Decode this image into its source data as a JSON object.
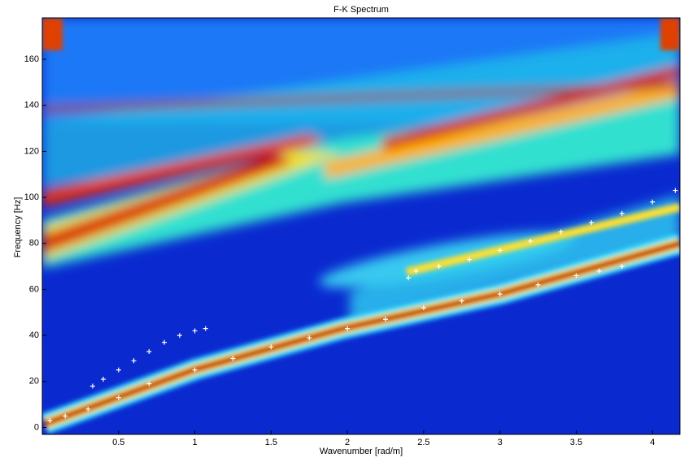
{
  "chart_data": {
    "type": "scatter",
    "title": "F-K Spectrum",
    "x_label": "Wavenumber [rad/m]",
    "y_label": "Frequency [Hz]",
    "xlim": [
      0,
      4.18
    ],
    "xticks": [
      0.5,
      1,
      1.5,
      2,
      2.5,
      3,
      3.5,
      4
    ],
    "ylim": [
      -3,
      178
    ],
    "yticks": [
      0,
      20,
      40,
      60,
      80,
      100,
      120,
      140,
      160
    ],
    "series": [
      {
        "color": "#ffffff",
        "x": [
          0.05,
          0.15,
          0.3,
          0.5,
          0.7,
          1.0,
          1.25,
          1.5,
          1.75,
          2.0,
          2.25,
          2.5,
          2.75,
          3.0,
          3.25,
          3.5,
          3.65,
          3.8
        ],
        "values": [
          3,
          5,
          8,
          13,
          19,
          25,
          30,
          35,
          39,
          43,
          47,
          52,
          55,
          58,
          62,
          66,
          68,
          70
        ]
      },
      {
        "color": "#ffffff",
        "x": [
          0.33,
          0.4,
          0.5,
          0.6,
          0.7,
          0.8,
          0.9,
          1.0,
          1.07
        ],
        "values": [
          18,
          21,
          25,
          29,
          33,
          37,
          40,
          42,
          43
        ]
      },
      {
        "color": "#ffffff",
        "x": [
          2.4,
          2.45,
          2.6,
          2.8,
          3.0,
          3.2,
          3.4,
          3.6,
          3.8,
          4.0,
          4.15
        ],
        "values": [
          65,
          68,
          70,
          73,
          77,
          81,
          85,
          89,
          93,
          98,
          103
        ]
      }
    ]
  }
}
